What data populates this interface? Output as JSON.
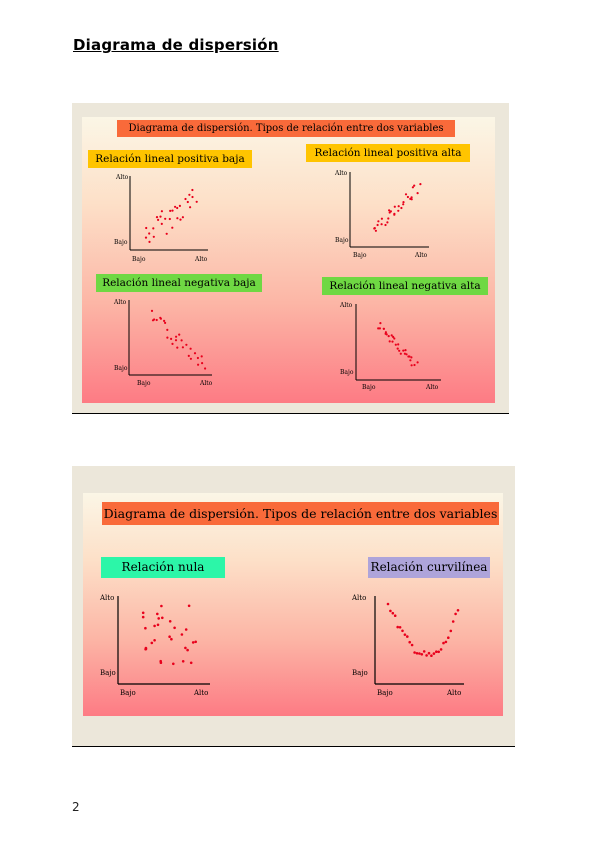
{
  "document": {
    "title": "Diagrama de dispersión",
    "page_number": "2"
  },
  "colors": {
    "banner": "#f96a3a",
    "label_yellow": "#ffc400",
    "label_green": "#6fd843",
    "label_mint": "#2cf6a8",
    "label_lavender": "#aea4da",
    "dot": "#e8001c"
  },
  "slide1": {
    "banner": "Diagrama de dispersión. Tipos de relación entre dos variables",
    "plots": [
      {
        "label": "Relación lineal positiva baja",
        "y_high": "Alto",
        "y_low": "Bajo",
        "x_low": "Bajo",
        "x_high": "Alto"
      },
      {
        "label": "Relación lineal positiva alta",
        "y_high": "Alto",
        "y_low": "Bajo",
        "x_low": "Bajo",
        "x_high": "Alto"
      },
      {
        "label": "Relación lineal  negativa baja",
        "y_high": "Alto",
        "y_low": "Bajo",
        "x_low": "Bajo",
        "x_high": "Alto"
      },
      {
        "label": "Relación lineal  negativa alta",
        "y_high": "Alto",
        "y_low": "Bajo",
        "x_low": "Bajo",
        "x_high": "Alto"
      }
    ]
  },
  "slide2": {
    "banner": "Diagrama de dispersión. Tipos de relación entre dos variables",
    "plots": [
      {
        "label": "Relación nula",
        "y_high": "Alto",
        "y_low": "Bajo",
        "x_low": "Bajo",
        "x_high": "Alto"
      },
      {
        "label": "Relación curvilínea",
        "y_high": "Alto",
        "y_low": "Bajo",
        "x_low": "Bajo",
        "x_high": "Alto"
      }
    ]
  }
}
